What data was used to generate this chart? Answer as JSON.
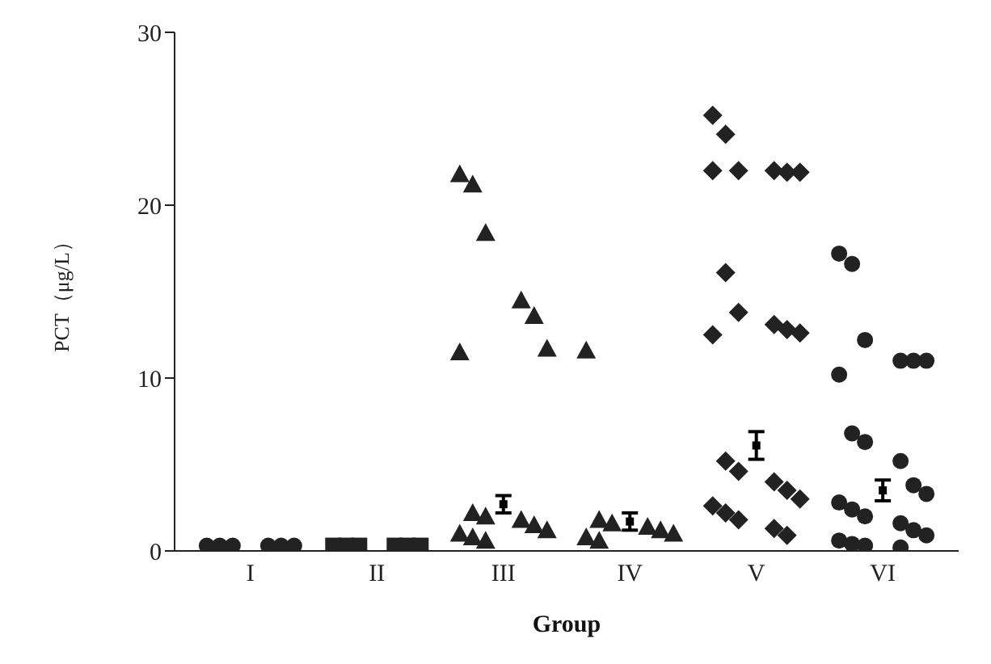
{
  "chart_data": {
    "type": "scatter",
    "xlabel": "Group",
    "ylabel": "PCT（μg/L）",
    "categories": [
      "I",
      "II",
      "III",
      "IV",
      "V",
      "VI"
    ],
    "ylim": [
      0,
      30
    ],
    "yticks": [
      0,
      10,
      20,
      30
    ],
    "grid": false,
    "legend": false,
    "series": [
      {
        "marker": "circle",
        "color": "#222222",
        "x": [
          "I",
          "I",
          "I",
          "I",
          "I",
          "I"
        ],
        "values": [
          0.3,
          0.3,
          0.3,
          0.3,
          0.3,
          0.3
        ]
      },
      {
        "marker": "square",
        "color": "#222222",
        "x": [
          "II",
          "II",
          "II",
          "II",
          "II",
          "II"
        ],
        "values": [
          0.3,
          0.3,
          0.3,
          0.3,
          0.3,
          0.3
        ]
      },
      {
        "marker": "triangle",
        "color": "#222222",
        "x": [
          "III",
          "III",
          "III",
          "III",
          "III",
          "III",
          "III",
          "III",
          "III",
          "III",
          "III",
          "III",
          "III",
          "III",
          "III"
        ],
        "values": [
          21.8,
          21.2,
          18.4,
          14.5,
          13.6,
          11.7,
          11.5,
          2.2,
          2.0,
          1.8,
          1.5,
          1.2,
          1.0,
          0.8,
          0.6
        ]
      },
      {
        "marker": "triangle",
        "color": "#222222",
        "x": [
          "IV",
          "IV",
          "IV",
          "IV",
          "IV",
          "IV",
          "IV",
          "IV"
        ],
        "values": [
          11.6,
          1.8,
          1.6,
          1.4,
          1.2,
          1.0,
          0.8,
          0.6
        ]
      },
      {
        "marker": "diamond",
        "color": "#222222",
        "x": [
          "V",
          "V",
          "V",
          "V",
          "V",
          "V",
          "V",
          "V",
          "V",
          "V",
          "V",
          "V",
          "V",
          "V",
          "V",
          "V",
          "V",
          "V",
          "V",
          "V",
          "V",
          "V",
          "V"
        ],
        "values": [
          25.2,
          24.1,
          22,
          22,
          21.9,
          21.9,
          22,
          16.1,
          13.8,
          13.1,
          12.8,
          12.6,
          12.5,
          5.2,
          4.6,
          4.0,
          3.5,
          3.0,
          2.6,
          2.2,
          1.8,
          1.3,
          0.9
        ]
      },
      {
        "marker": "circle",
        "color": "#222222",
        "x": [
          "VI",
          "VI",
          "VI",
          "VI",
          "VI",
          "VI",
          "VI",
          "VI",
          "VI",
          "VI",
          "VI",
          "VI",
          "VI",
          "VI",
          "VI",
          "VI",
          "VI",
          "VI",
          "VI",
          "VI",
          "VI",
          "VI"
        ],
        "values": [
          17.2,
          16.6,
          12.2,
          11.0,
          11.0,
          11.0,
          10.2,
          6.8,
          6.3,
          5.2,
          3.8,
          3.3,
          2.8,
          2.4,
          2.0,
          1.6,
          1.2,
          0.9,
          0.6,
          0.4,
          0.3,
          0.2
        ]
      },
      {
        "type": "scatter",
        "marker": "square",
        "color": "#000000",
        "x": [
          "I",
          "II",
          "III",
          "IV",
          "V",
          "VI"
        ],
        "values": [
          null,
          null,
          2.7,
          1.7,
          6.1,
          3.5
        ],
        "errors": [
          null,
          null,
          0.5,
          0.5,
          0.8,
          0.6
        ]
      }
    ]
  }
}
